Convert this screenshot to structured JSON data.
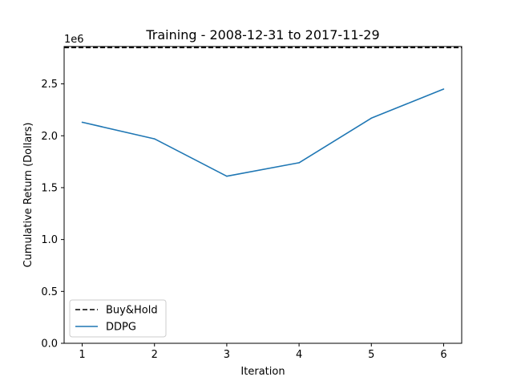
{
  "chart_data": {
    "type": "line",
    "title": "Training - 2008-12-31 to 2017-11-29",
    "xlabel": "Iteration",
    "ylabel": "Cumulative Return (Dollars)",
    "y_scale_label": "1e6",
    "x": [
      1,
      2,
      3,
      4,
      5,
      6
    ],
    "x_ticks": [
      "1",
      "2",
      "3",
      "4",
      "5",
      "6"
    ],
    "xlim": [
      0.75,
      6.25
    ],
    "y_ticks": [
      "0.0",
      "0.5",
      "1.0",
      "1.5",
      "2.0",
      "2.5"
    ],
    "y_tick_values": [
      0.0,
      0.5,
      1.0,
      1.5,
      2.0,
      2.5
    ],
    "ylim": [
      0.0,
      2.86
    ],
    "grid": false,
    "legend_position": "lower-left",
    "series": [
      {
        "name": "Buy&Hold",
        "kind": "hline",
        "value": 2.85,
        "color": "#000000",
        "style": "dashed"
      },
      {
        "name": "DDPG",
        "kind": "line",
        "values": [
          2.13,
          1.97,
          1.61,
          1.74,
          2.17,
          2.45
        ],
        "color": "#1f77b4",
        "style": "solid"
      }
    ]
  }
}
